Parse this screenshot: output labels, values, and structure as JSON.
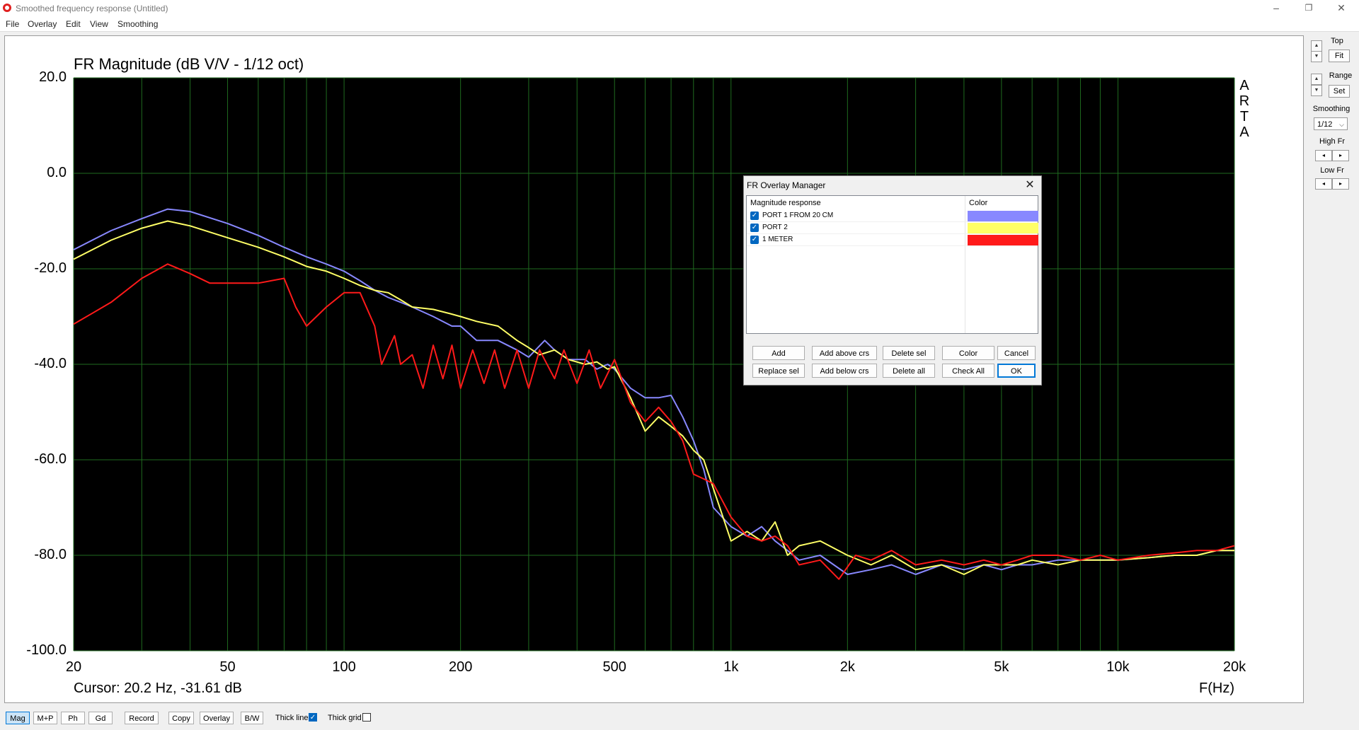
{
  "window": {
    "title": "Smoothed frequency response (Untitled)",
    "controls": [
      "–",
      "❐",
      "✕"
    ]
  },
  "menu": [
    "File",
    "Overlay",
    "Edit",
    "View",
    "Smoothing"
  ],
  "plot": {
    "title": "FR Magnitude (dB V/V - 1/12 oct)",
    "cursor": "Cursor: 20.2 Hz, -31.61 dB",
    "xunit": "F(Hz)",
    "watermark": "ARTA",
    "colors": {
      "background": "#000000",
      "grid": "#1f6b1f"
    }
  },
  "chart_data": {
    "type": "line",
    "title": "FR Magnitude (dB V/V - 1/12 oct)",
    "xlabel": "F(Hz)",
    "ylabel": "",
    "x_scale": "log",
    "xlim": [
      20,
      20000
    ],
    "ylim": [
      -100,
      20
    ],
    "grid": true,
    "x_ticks": [
      "20",
      "50",
      "100",
      "200",
      "500",
      "1k",
      "2k",
      "5k",
      "10k",
      "20k"
    ],
    "x_tick_values": [
      20,
      50,
      100,
      200,
      500,
      1000,
      2000,
      5000,
      10000,
      20000
    ],
    "y_ticks": [
      "20.0",
      "0.0",
      "-20.0",
      "-40.0",
      "-60.0",
      "-80.0",
      "-100.0"
    ],
    "y_tick_values": [
      20,
      0,
      -20,
      -40,
      -60,
      -80,
      -100
    ],
    "series": [
      {
        "name": "PORT 1 FROM 20 CM",
        "color": "#8888ff",
        "points": [
          [
            20,
            -16
          ],
          [
            25,
            -12
          ],
          [
            30,
            -9.5
          ],
          [
            35,
            -7.5
          ],
          [
            40,
            -8
          ],
          [
            50,
            -10.5
          ],
          [
            60,
            -13
          ],
          [
            70,
            -15.5
          ],
          [
            80,
            -17.5
          ],
          [
            90,
            -19
          ],
          [
            100,
            -20.5
          ],
          [
            110,
            -22.5
          ],
          [
            120,
            -24.5
          ],
          [
            130,
            -26
          ],
          [
            140,
            -27
          ],
          [
            150,
            -28
          ],
          [
            170,
            -30
          ],
          [
            190,
            -32
          ],
          [
            200,
            -32
          ],
          [
            220,
            -35
          ],
          [
            250,
            -35
          ],
          [
            280,
            -37
          ],
          [
            300,
            -38.5
          ],
          [
            330,
            -35
          ],
          [
            350,
            -37
          ],
          [
            380,
            -39
          ],
          [
            420,
            -39
          ],
          [
            450,
            -41
          ],
          [
            480,
            -40
          ],
          [
            500,
            -41
          ],
          [
            550,
            -45
          ],
          [
            600,
            -47
          ],
          [
            650,
            -47
          ],
          [
            700,
            -46.5
          ],
          [
            750,
            -51
          ],
          [
            800,
            -56
          ],
          [
            850,
            -62
          ],
          [
            900,
            -70
          ],
          [
            1000,
            -74
          ],
          [
            1100,
            -76
          ],
          [
            1200,
            -74
          ],
          [
            1300,
            -77
          ],
          [
            1400,
            -79
          ],
          [
            1500,
            -81
          ],
          [
            1700,
            -80
          ],
          [
            2000,
            -84
          ],
          [
            2300,
            -83
          ],
          [
            2600,
            -82
          ],
          [
            3000,
            -84
          ],
          [
            3500,
            -82
          ],
          [
            4000,
            -83
          ],
          [
            4500,
            -82
          ],
          [
            5000,
            -83
          ],
          [
            5500,
            -82
          ],
          [
            6000,
            -82
          ],
          [
            7000,
            -81
          ],
          [
            8000,
            -81
          ],
          [
            9000,
            -81
          ],
          [
            10000,
            -81
          ],
          [
            12000,
            -80.5
          ],
          [
            14000,
            -80
          ],
          [
            16000,
            -80
          ],
          [
            18000,
            -79
          ],
          [
            20000,
            -79
          ]
        ]
      },
      {
        "name": "PORT 2",
        "color": "#ffff66",
        "points": [
          [
            20,
            -18
          ],
          [
            25,
            -14
          ],
          [
            30,
            -11.5
          ],
          [
            35,
            -10
          ],
          [
            40,
            -11
          ],
          [
            50,
            -13.5
          ],
          [
            60,
            -15.5
          ],
          [
            70,
            -17.5
          ],
          [
            80,
            -19.5
          ],
          [
            90,
            -20.5
          ],
          [
            100,
            -22
          ],
          [
            110,
            -23.5
          ],
          [
            120,
            -24.5
          ],
          [
            130,
            -25
          ],
          [
            140,
            -26.5
          ],
          [
            150,
            -28
          ],
          [
            170,
            -28.5
          ],
          [
            190,
            -29.5
          ],
          [
            200,
            -30
          ],
          [
            220,
            -31
          ],
          [
            250,
            -32
          ],
          [
            280,
            -35
          ],
          [
            300,
            -36.5
          ],
          [
            320,
            -38
          ],
          [
            350,
            -37
          ],
          [
            380,
            -39
          ],
          [
            420,
            -40
          ],
          [
            450,
            -39.5
          ],
          [
            480,
            -41
          ],
          [
            500,
            -40.5
          ],
          [
            550,
            -47
          ],
          [
            600,
            -54
          ],
          [
            650,
            -51
          ],
          [
            700,
            -53
          ],
          [
            750,
            -55
          ],
          [
            800,
            -58
          ],
          [
            850,
            -60
          ],
          [
            900,
            -66
          ],
          [
            1000,
            -77
          ],
          [
            1100,
            -75
          ],
          [
            1200,
            -77
          ],
          [
            1300,
            -73
          ],
          [
            1400,
            -80
          ],
          [
            1500,
            -78
          ],
          [
            1700,
            -77
          ],
          [
            2000,
            -80
          ],
          [
            2300,
            -82
          ],
          [
            2600,
            -80
          ],
          [
            3000,
            -83
          ],
          [
            3500,
            -82
          ],
          [
            4000,
            -84
          ],
          [
            4500,
            -82
          ],
          [
            5000,
            -82
          ],
          [
            5500,
            -82
          ],
          [
            6000,
            -81
          ],
          [
            7000,
            -82
          ],
          [
            8000,
            -81
          ],
          [
            9000,
            -81
          ],
          [
            10000,
            -81
          ],
          [
            12000,
            -80.5
          ],
          [
            14000,
            -80
          ],
          [
            16000,
            -80
          ],
          [
            18000,
            -79
          ],
          [
            20000,
            -79
          ]
        ]
      },
      {
        "name": "1 METER",
        "color": "#ff1a1a",
        "points": [
          [
            20,
            -31.6
          ],
          [
            25,
            -27
          ],
          [
            30,
            -22
          ],
          [
            35,
            -19
          ],
          [
            40,
            -21
          ],
          [
            45,
            -23
          ],
          [
            50,
            -23
          ],
          [
            60,
            -23
          ],
          [
            70,
            -22
          ],
          [
            75,
            -28
          ],
          [
            80,
            -32
          ],
          [
            90,
            -28
          ],
          [
            100,
            -25
          ],
          [
            110,
            -25
          ],
          [
            120,
            -32
          ],
          [
            125,
            -40
          ],
          [
            135,
            -34
          ],
          [
            140,
            -40
          ],
          [
            150,
            -38
          ],
          [
            160,
            -45
          ],
          [
            170,
            -36
          ],
          [
            180,
            -43
          ],
          [
            190,
            -36
          ],
          [
            200,
            -45
          ],
          [
            215,
            -37
          ],
          [
            230,
            -44
          ],
          [
            245,
            -37
          ],
          [
            260,
            -45
          ],
          [
            280,
            -37
          ],
          [
            300,
            -45
          ],
          [
            320,
            -37
          ],
          [
            350,
            -43
          ],
          [
            370,
            -37
          ],
          [
            400,
            -44
          ],
          [
            430,
            -37
          ],
          [
            460,
            -45
          ],
          [
            500,
            -39
          ],
          [
            550,
            -48
          ],
          [
            600,
            -52
          ],
          [
            650,
            -49
          ],
          [
            700,
            -52
          ],
          [
            750,
            -56
          ],
          [
            800,
            -63
          ],
          [
            850,
            -64
          ],
          [
            900,
            -65
          ],
          [
            1000,
            -72
          ],
          [
            1100,
            -76
          ],
          [
            1200,
            -77
          ],
          [
            1300,
            -76
          ],
          [
            1400,
            -78
          ],
          [
            1500,
            -82
          ],
          [
            1700,
            -81
          ],
          [
            1900,
            -85
          ],
          [
            2100,
            -80
          ],
          [
            2300,
            -81
          ],
          [
            2600,
            -79
          ],
          [
            3000,
            -82
          ],
          [
            3500,
            -81
          ],
          [
            4000,
            -82
          ],
          [
            4500,
            -81
          ],
          [
            5000,
            -82
          ],
          [
            5500,
            -81
          ],
          [
            6000,
            -80
          ],
          [
            7000,
            -80
          ],
          [
            8000,
            -81
          ],
          [
            9000,
            -80
          ],
          [
            10000,
            -81
          ],
          [
            12000,
            -80
          ],
          [
            14000,
            -79.5
          ],
          [
            16000,
            -79
          ],
          [
            18000,
            -79
          ],
          [
            20000,
            -78
          ]
        ]
      }
    ]
  },
  "right_panel": {
    "top_label": "Top",
    "fit_label": "Fit",
    "range_label": "Range",
    "set_label": "Set",
    "smoothing_label": "Smoothing",
    "smoothing_value": "1/12",
    "high_fr_label": "High Fr",
    "low_fr_label": "Low Fr"
  },
  "toolbar": {
    "buttons": [
      "Mag",
      "M+P",
      "Ph",
      "Gd",
      "Record",
      "Copy",
      "Overlay",
      "B/W"
    ],
    "active": "Mag",
    "thick_line_label": "Thick line",
    "thick_line_checked": true,
    "thick_grid_label": "Thick grid",
    "thick_grid_checked": false
  },
  "dialog": {
    "title": "FR Overlay Manager",
    "col_magnitude": "Magnitude response",
    "col_color": "Color",
    "rows": [
      {
        "name": "PORT 1 FROM 20 CM",
        "checked": true,
        "color": "#8888ff"
      },
      {
        "name": "PORT 2",
        "checked": true,
        "color": "#ffff66"
      },
      {
        "name": "1 METER",
        "checked": true,
        "color": "#ff1a1a"
      }
    ],
    "buttons_row1": [
      "Add",
      "Add above crs",
      "Delete sel",
      "Color",
      "Cancel"
    ],
    "buttons_row2": [
      "Replace sel",
      "Add below crs",
      "Delete all",
      "Check All",
      "OK"
    ]
  }
}
